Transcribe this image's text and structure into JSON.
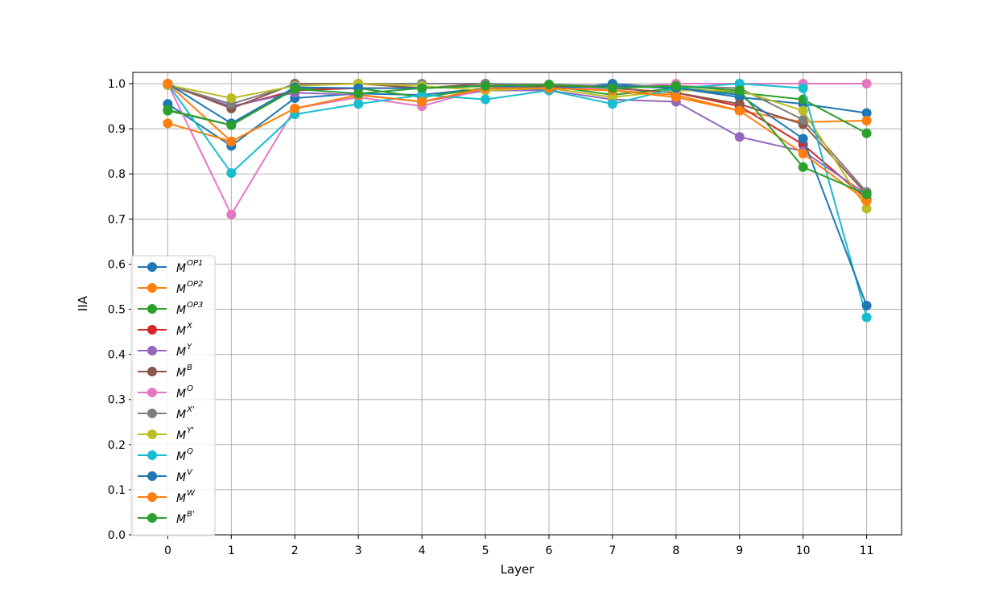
{
  "chart_data": {
    "type": "line",
    "title": "",
    "xlabel": "Layer",
    "ylabel": "IIA",
    "x": [
      0,
      1,
      2,
      3,
      4,
      5,
      6,
      7,
      8,
      9,
      10,
      11
    ],
    "x_ticks": [
      "0",
      "1",
      "2",
      "3",
      "4",
      "5",
      "6",
      "7",
      "8",
      "9",
      "10",
      "11"
    ],
    "y_ticks": [
      "0.0",
      "0.1",
      "0.2",
      "0.3",
      "0.4",
      "0.5",
      "0.6",
      "0.7",
      "0.8",
      "0.9",
      "1.0"
    ],
    "xlim": [
      -0.55,
      11.55
    ],
    "ylim": [
      0.0,
      1.025
    ],
    "grid": true,
    "legend_position": "lower-left",
    "series": [
      {
        "name": "M",
        "sup": "OP1",
        "color": "#1f77b4",
        "values": [
          0.955,
          0.862,
          0.968,
          0.978,
          0.975,
          0.99,
          0.985,
          1.0,
          0.99,
          0.97,
          0.955,
          0.935
        ]
      },
      {
        "name": "M",
        "sup": "OP2",
        "color": "#ff7f0e",
        "values": [
          0.912,
          0.872,
          0.945,
          0.975,
          0.96,
          0.99,
          0.99,
          0.985,
          0.975,
          0.94,
          0.915,
          0.918
        ]
      },
      {
        "name": "M",
        "sup": "OP3",
        "color": "#2ca02c",
        "values": [
          0.94,
          0.908,
          0.988,
          0.99,
          0.97,
          0.99,
          0.995,
          0.975,
          0.99,
          0.98,
          0.965,
          0.89
        ]
      },
      {
        "name": "M",
        "sup": "X",
        "color": "#d62728",
        "values": [
          0.997,
          0.948,
          0.985,
          0.99,
          0.99,
          0.995,
          0.99,
          0.99,
          0.98,
          0.95,
          0.865,
          0.745
        ]
      },
      {
        "name": "M",
        "sup": "Y",
        "color": "#9467bd",
        "values": [
          0.997,
          0.95,
          0.98,
          0.975,
          0.96,
          0.985,
          0.985,
          0.965,
          0.96,
          0.882,
          0.85,
          0.755
        ]
      },
      {
        "name": "M",
        "sup": "B",
        "color": "#8c564b",
        "values": [
          1.0,
          0.945,
          1.0,
          1.0,
          0.99,
          1.0,
          0.995,
          0.99,
          0.98,
          0.955,
          0.91,
          0.755
        ]
      },
      {
        "name": "M",
        "sup": "O",
        "color": "#e377c2",
        "values": [
          1.0,
          0.71,
          0.945,
          0.97,
          0.95,
          0.99,
          0.99,
          0.99,
          1.0,
          1.0,
          1.0,
          1.0
        ]
      },
      {
        "name": "M",
        "sup": "X'",
        "color": "#7f7f7f",
        "values": [
          0.997,
          0.955,
          0.998,
          1.0,
          1.0,
          1.0,
          0.998,
          0.995,
          0.995,
          0.99,
          0.92,
          0.76
        ]
      },
      {
        "name": "M",
        "sup": "Y'",
        "color": "#bcbd22",
        "values": [
          0.997,
          0.968,
          0.995,
          1.0,
          0.995,
          0.985,
          0.99,
          0.97,
          0.985,
          0.985,
          0.94,
          0.723
        ]
      },
      {
        "name": "M",
        "sup": "Q",
        "color": "#17becf",
        "values": [
          1.0,
          0.802,
          0.932,
          0.955,
          0.975,
          0.965,
          0.985,
          0.955,
          0.99,
          1.0,
          0.99,
          0.482
        ]
      },
      {
        "name": "M",
        "sup": "V",
        "color": "#1f77b4",
        "values": [
          1.0,
          0.912,
          0.992,
          0.99,
          0.99,
          0.995,
          0.99,
          0.995,
          0.99,
          0.975,
          0.878,
          0.508
        ]
      },
      {
        "name": "M",
        "sup": "W",
        "color": "#ff7f0e",
        "values": [
          1.0,
          0.872,
          0.945,
          0.975,
          0.96,
          0.99,
          0.99,
          0.985,
          0.97,
          0.94,
          0.845,
          0.74
        ]
      },
      {
        "name": "M",
        "sup": "B'",
        "color": "#2ca02c",
        "values": [
          0.942,
          0.908,
          0.988,
          0.978,
          0.99,
          0.995,
          0.998,
          0.99,
          0.995,
          0.985,
          0.815,
          0.755
        ]
      }
    ]
  }
}
